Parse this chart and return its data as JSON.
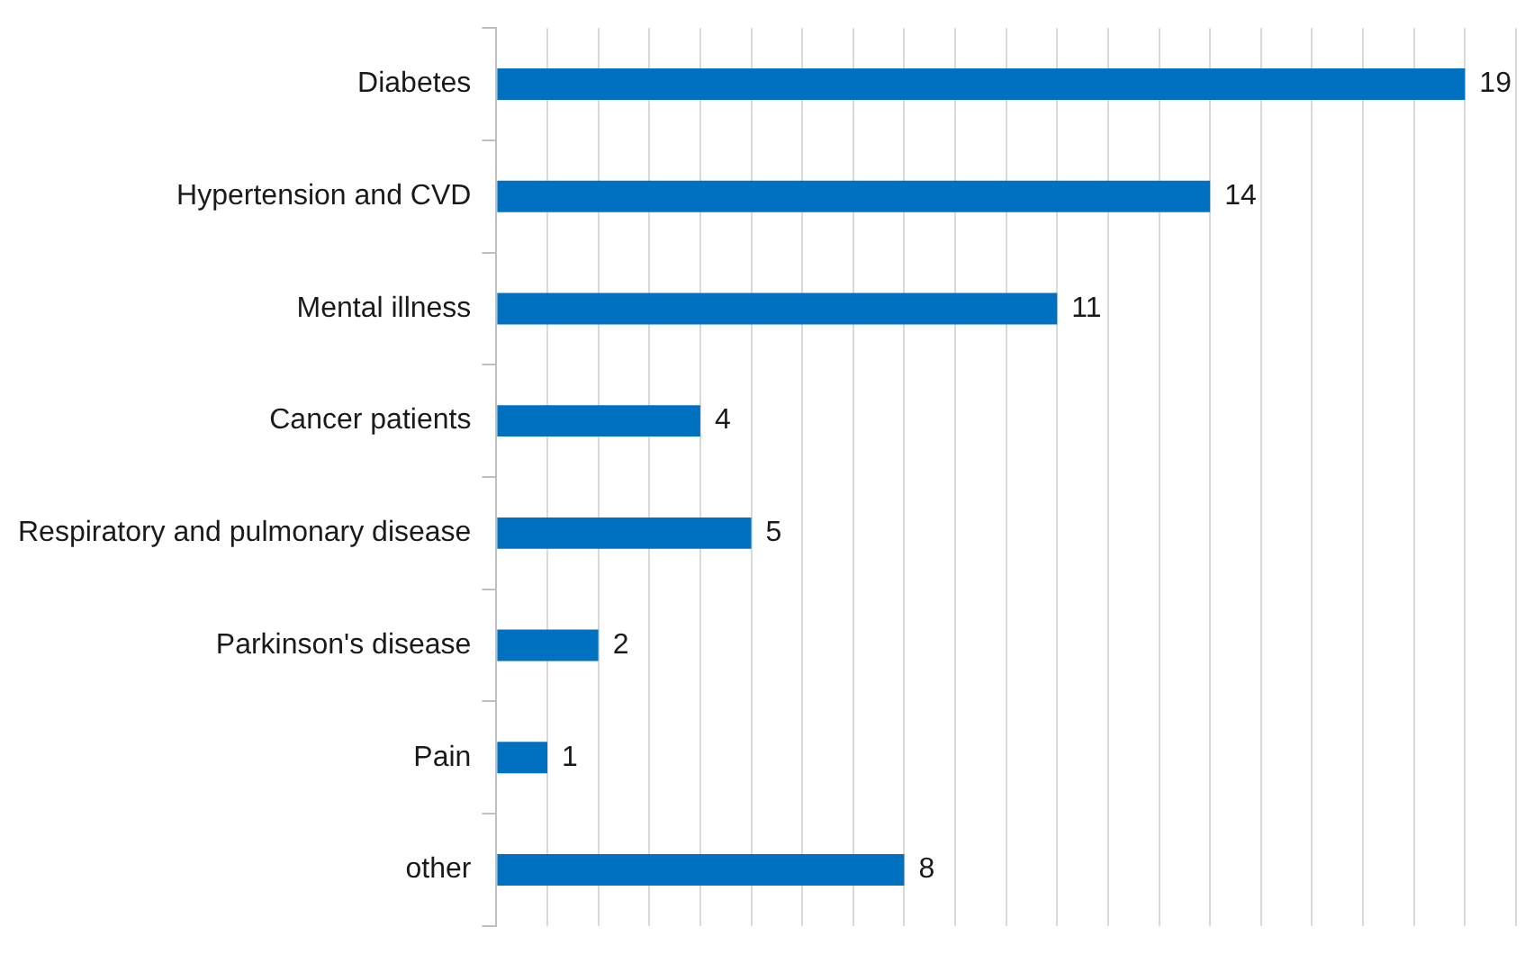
{
  "chart_data": {
    "type": "bar",
    "orientation": "horizontal",
    "categories": [
      "Diabetes",
      "Hypertension and CVD",
      "Mental illness",
      "Cancer patients",
      "Respiratory and pulmonary disease",
      "Parkinson's disease",
      "Pain",
      "other"
    ],
    "values": [
      19,
      14,
      11,
      4,
      5,
      2,
      1,
      8
    ],
    "color": "#0070c0",
    "xlim": [
      0,
      20
    ],
    "xticks": [
      {
        "value": 0,
        "label": null
      },
      {
        "value": 1,
        "label": null
      },
      {
        "value": 2,
        "label": null
      },
      {
        "value": 3,
        "label": null
      },
      {
        "value": 4,
        "label": null
      },
      {
        "value": 5,
        "label": null
      },
      {
        "value": 6,
        "label": null
      },
      {
        "value": 7,
        "label": null
      },
      {
        "value": 8,
        "label": null
      },
      {
        "value": 9,
        "label": null
      },
      {
        "value": 10,
        "label": null
      },
      {
        "value": 11,
        "label": null
      },
      {
        "value": 12,
        "label": null
      },
      {
        "value": 13,
        "label": null
      },
      {
        "value": 14,
        "label": null
      },
      {
        "value": 15,
        "label": null
      },
      {
        "value": 16,
        "label": null
      },
      {
        "value": 17,
        "label": null
      },
      {
        "value": 18,
        "label": null
      },
      {
        "value": 19,
        "label": null
      },
      {
        "value": 20,
        "label": null
      }
    ],
    "grid": "x",
    "tick_labels": "y",
    "data_labels": true
  }
}
